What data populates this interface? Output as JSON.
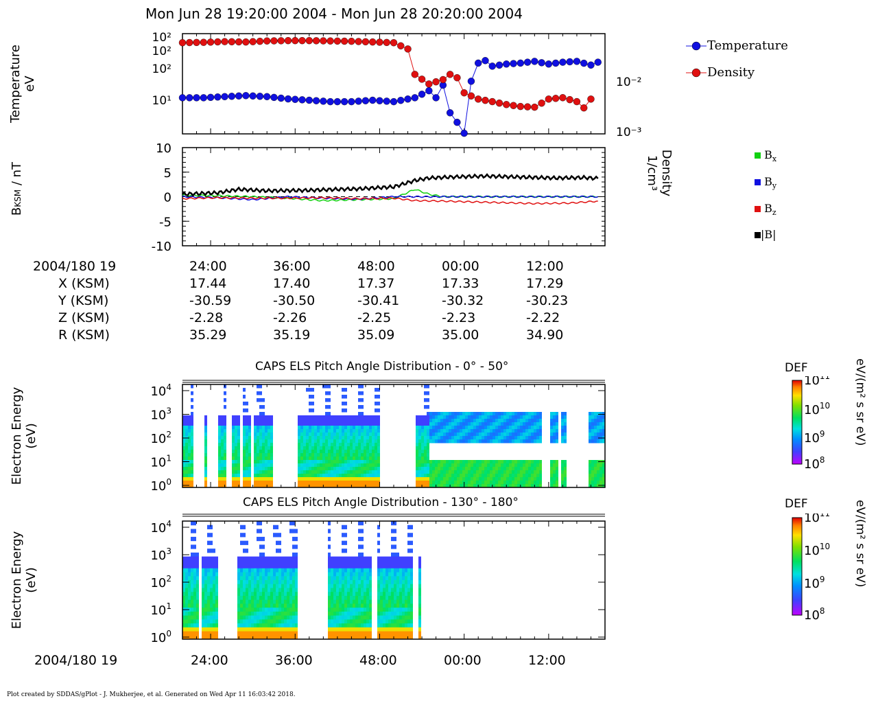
{
  "title": "Mon Jun 28 19:20:00 2004 - Mon Jun 28 20:20:00 2004",
  "footer": "Plot created by SDDAS/gPlot - J. Mukherjee, et al.  Generated on Wed Apr 11 16:03:42 2018.",
  "colors": {
    "temperature": "#1010e0",
    "density": "#e01010",
    "bx": "#10d010",
    "by": "#1010e0",
    "bz": "#e01010",
    "btot": "#000000"
  },
  "ephemeris": {
    "header": "2004/180 19",
    "rows": [
      {
        "label": "X (KSM)",
        "values": [
          "17.44",
          "17.40",
          "17.37",
          "17.33",
          "17.29"
        ]
      },
      {
        "label": "Y (KSM)",
        "values": [
          "-30.59",
          "-30.50",
          "-30.41",
          "-30.32",
          "-30.23"
        ]
      },
      {
        "label": "Z (KSM)",
        "values": [
          "-2.28",
          "-2.26",
          "-2.25",
          "-2.23",
          "-2.22"
        ]
      },
      {
        "label": "R (KSM)",
        "values": [
          "35.29",
          "35.19",
          "35.09",
          "35.00",
          "34.90"
        ]
      }
    ]
  },
  "time_axis": {
    "ticks": [
      "24:00",
      "36:00",
      "48:00",
      "00:00",
      "12:00"
    ],
    "bottom_label": "2004/180 19"
  },
  "spectrogram1": {
    "title": "CAPS ELS Pitch Angle Distribution - 0° - 50°",
    "ylabel_top": "Electron Energy",
    "ylabel_bottom": "(eV)",
    "colorbar_label": "DEF",
    "colorbar_units": "eV/(m² s sr eV)"
  },
  "spectrogram2": {
    "title": "CAPS ELS Pitch Angle Distribution - 130° - 180°",
    "ylabel_top": "Electron Energy",
    "ylabel_bottom": "(eV)",
    "colorbar_label": "DEF",
    "colorbar_units": "eV/(m² s sr eV)"
  },
  "chart_data": [
    {
      "type": "line",
      "ylabel_top": "Temperature",
      "ylabel_bottom": "eV",
      "ylabel_right_top": "Density",
      "ylabel_right_bottom": "1/cm³",
      "y_scale": "log",
      "y2_scale": "log",
      "y2_ticks": [
        "10⁻²",
        "10⁻³"
      ],
      "ytick_labels": [
        "10²",
        "10²",
        "10²",
        "10¹"
      ],
      "legend": [
        "Temperature",
        "Density"
      ],
      "series": [
        {
          "name": "Temperature",
          "points": [
            [
              0,
              12
            ],
            [
              3,
              12
            ],
            [
              6,
              13
            ],
            [
              9,
              14
            ],
            [
              12,
              13
            ],
            [
              15,
              11
            ],
            [
              18,
              10
            ],
            [
              21,
              9
            ],
            [
              24,
              9
            ],
            [
              27,
              10
            ],
            [
              30,
              9
            ],
            [
              33,
              12
            ],
            [
              35,
              20
            ],
            [
              36,
              12
            ],
            [
              37,
              30
            ],
            [
              38,
              4
            ],
            [
              39,
              2
            ],
            [
              40,
              0.9
            ],
            [
              41,
              40
            ],
            [
              42,
              150
            ],
            [
              43,
              180
            ],
            [
              44,
              120
            ],
            [
              46,
              140
            ],
            [
              48,
              150
            ],
            [
              50,
              170
            ],
            [
              52,
              140
            ],
            [
              54,
              160
            ],
            [
              56,
              170
            ],
            [
              58,
              130
            ],
            [
              59,
              160
            ]
          ]
        },
        {
          "name": "Density",
          "points": [
            [
              0,
              0.06
            ],
            [
              3,
              0.061
            ],
            [
              6,
              0.063
            ],
            [
              9,
              0.062
            ],
            [
              12,
              0.065
            ],
            [
              15,
              0.066
            ],
            [
              18,
              0.066
            ],
            [
              21,
              0.065
            ],
            [
              24,
              0.064
            ],
            [
              27,
              0.062
            ],
            [
              30,
              0.06
            ],
            [
              32,
              0.045
            ],
            [
              33,
              0.014
            ],
            [
              35,
              0.009
            ],
            [
              37,
              0.011
            ],
            [
              38,
              0.014
            ],
            [
              39,
              0.012
            ],
            [
              40,
              0.006
            ],
            [
              42,
              0.0045
            ],
            [
              44,
              0.004
            ],
            [
              46,
              0.0035
            ],
            [
              48,
              0.0032
            ],
            [
              50,
              0.0031
            ],
            [
              52,
              0.0045
            ],
            [
              54,
              0.0048
            ],
            [
              56,
              0.004
            ],
            [
              57,
              0.003
            ],
            [
              58,
              0.0045
            ]
          ]
        }
      ]
    },
    {
      "type": "line",
      "ylabel_main": "B",
      "ylabel_sub": "KSM",
      "ylabel_rest": " / nT",
      "ylim": [
        -10,
        10
      ],
      "yticks": [
        10,
        5,
        0,
        -5,
        -10
      ],
      "legend": [
        "x",
        "y",
        "z",
        "|B|"
      ],
      "series": [
        {
          "name": "Bx",
          "points": [
            [
              0,
              0.3
            ],
            [
              5,
              0.2
            ],
            [
              10,
              0
            ],
            [
              15,
              -0.3
            ],
            [
              20,
              -0.8
            ],
            [
              25,
              -0.6
            ],
            [
              30,
              -0.4
            ],
            [
              33,
              1.5
            ],
            [
              35,
              0.5
            ],
            [
              37,
              0
            ],
            [
              45,
              0
            ],
            [
              59,
              0
            ]
          ]
        },
        {
          "name": "By",
          "points": [
            [
              0,
              0
            ],
            [
              5,
              -0.2
            ],
            [
              10,
              -0.6
            ],
            [
              15,
              0
            ],
            [
              20,
              -0.3
            ],
            [
              25,
              -0.5
            ],
            [
              30,
              0
            ],
            [
              33,
              0
            ],
            [
              37,
              0
            ],
            [
              45,
              0
            ],
            [
              59,
              0
            ]
          ]
        },
        {
          "name": "Bz",
          "points": [
            [
              0,
              -0.4
            ],
            [
              5,
              -0.2
            ],
            [
              10,
              -0.3
            ],
            [
              15,
              -0.3
            ],
            [
              20,
              -0.2
            ],
            [
              25,
              -0.4
            ],
            [
              30,
              -0.3
            ],
            [
              33,
              -0.8
            ],
            [
              37,
              -0.9
            ],
            [
              45,
              -1.2
            ],
            [
              50,
              -1.4
            ],
            [
              55,
              -1.3
            ],
            [
              59,
              -0.9
            ]
          ]
        },
        {
          "name": "|B|",
          "points": [
            [
              0,
              0.5
            ],
            [
              5,
              0.8
            ],
            [
              8,
              1.5
            ],
            [
              12,
              1.2
            ],
            [
              18,
              1.3
            ],
            [
              22,
              1.5
            ],
            [
              25,
              1.6
            ],
            [
              30,
              2
            ],
            [
              33,
              3.3
            ],
            [
              35,
              3.8
            ],
            [
              38,
              4
            ],
            [
              43,
              4.2
            ],
            [
              48,
              4
            ],
            [
              53,
              3.8
            ],
            [
              57,
              3.9
            ],
            [
              59,
              3.7
            ]
          ]
        }
      ]
    }
  ]
}
